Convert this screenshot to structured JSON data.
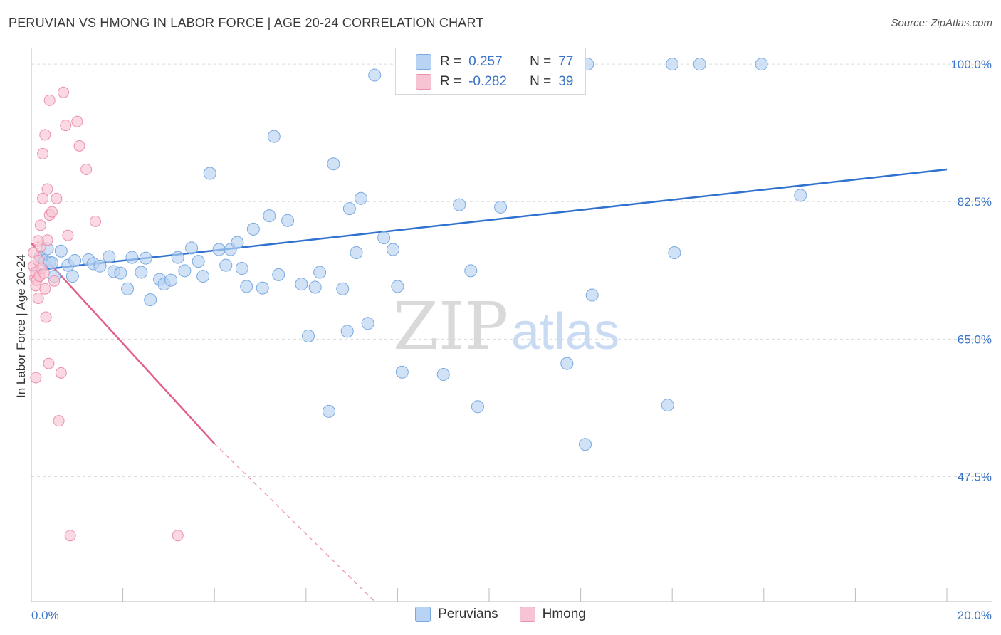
{
  "title": "PERUVIAN VS HMONG IN LABOR FORCE | AGE 20-24 CORRELATION CHART",
  "source": "Source: ZipAtlas.com",
  "watermark": {
    "zip": "ZIP",
    "atlas": "atlas"
  },
  "colors": {
    "peruvians_fill": "#b8d3f3",
    "peruvians_stroke": "#7aa9e0",
    "peruvians_line": "#2f72cf",
    "hmong_fill": "#f7c4d3",
    "hmong_stroke": "#ec8fae",
    "hmong_line": "#e2608a",
    "grid": "#dcdcdc",
    "tick_text": "#3a74c8"
  },
  "legend": {
    "rows": [
      {
        "r_label": "R =",
        "r_value": "0.257",
        "n_label": "N =",
        "n_value": "77"
      },
      {
        "r_label": "R =",
        "r_value": "-0.282",
        "n_label": "N =",
        "n_value": "39"
      }
    ]
  },
  "bottom_legend": {
    "peruvians": "Peruvians",
    "hmong": "Hmong"
  },
  "chart_data": {
    "type": "scatter",
    "title": "PERUVIAN VS HMONG IN LABOR FORCE | AGE 20-24 CORRELATION CHART",
    "xlabel": "",
    "ylabel": "In Labor Force | Age 20-24",
    "xlim": [
      0,
      20
    ],
    "ylim": [
      31.6,
      102
    ],
    "x_ticks": [
      0,
      2,
      4,
      6,
      8,
      10,
      12,
      14,
      16,
      18,
      20
    ],
    "x_tick_labels": {
      "0": "0.0%",
      "20": "20.0%"
    },
    "y_ticks": [
      47.5,
      65.0,
      82.5,
      100.0
    ],
    "y_tick_labels": [
      "47.5%",
      "65.0%",
      "82.5%",
      "100.0%"
    ],
    "grid": true,
    "legend_position": "top-center",
    "series": [
      {
        "name": "Peruvians",
        "r": 0.257,
        "n": 77,
        "trend": {
          "x": [
            0,
            20
          ],
          "y": [
            73.7,
            86.6
          ]
        },
        "points": [
          [
            0.2,
            75.5
          ],
          [
            0.3,
            75.0
          ],
          [
            0.35,
            76.5
          ],
          [
            0.4,
            74.8
          ],
          [
            0.5,
            73.0
          ],
          [
            0.65,
            76.2
          ],
          [
            0.8,
            74.4
          ],
          [
            0.9,
            73.0
          ],
          [
            0.95,
            75.0
          ],
          [
            1.25,
            75.1
          ],
          [
            1.35,
            74.6
          ],
          [
            1.5,
            74.3
          ],
          [
            1.7,
            75.5
          ],
          [
            1.8,
            73.6
          ],
          [
            1.95,
            73.4
          ],
          [
            2.1,
            71.4
          ],
          [
            2.2,
            75.4
          ],
          [
            2.4,
            73.5
          ],
          [
            2.5,
            75.3
          ],
          [
            2.6,
            70.0
          ],
          [
            2.8,
            72.6
          ],
          [
            2.9,
            72.0
          ],
          [
            3.05,
            72.5
          ],
          [
            3.2,
            75.4
          ],
          [
            3.35,
            73.7
          ],
          [
            3.5,
            76.6
          ],
          [
            3.65,
            74.9
          ],
          [
            3.75,
            73.0
          ],
          [
            3.9,
            86.1
          ],
          [
            4.1,
            76.4
          ],
          [
            4.25,
            74.4
          ],
          [
            4.35,
            76.4
          ],
          [
            4.5,
            77.3
          ],
          [
            4.6,
            74.0
          ],
          [
            4.7,
            71.7
          ],
          [
            4.85,
            79.0
          ],
          [
            5.05,
            71.5
          ],
          [
            5.2,
            80.7
          ],
          [
            5.3,
            90.8
          ],
          [
            5.4,
            73.2
          ],
          [
            5.6,
            80.1
          ],
          [
            5.9,
            72.0
          ],
          [
            6.05,
            65.4
          ],
          [
            6.2,
            71.6
          ],
          [
            6.3,
            73.5
          ],
          [
            6.5,
            55.8
          ],
          [
            6.6,
            87.3
          ],
          [
            6.8,
            71.4
          ],
          [
            6.9,
            66.0
          ],
          [
            6.95,
            81.6
          ],
          [
            7.1,
            76.0
          ],
          [
            7.2,
            82.9
          ],
          [
            7.35,
            67.0
          ],
          [
            7.5,
            98.6
          ],
          [
            7.7,
            77.9
          ],
          [
            7.9,
            76.4
          ],
          [
            8.0,
            71.7
          ],
          [
            8.1,
            60.8
          ],
          [
            8.3,
            100.0
          ],
          [
            8.55,
            100.0
          ],
          [
            9.0,
            60.5
          ],
          [
            9.3,
            100.0
          ],
          [
            9.35,
            82.1
          ],
          [
            9.6,
            73.7
          ],
          [
            9.75,
            56.4
          ],
          [
            10.25,
            81.8
          ],
          [
            11.7,
            61.9
          ],
          [
            12.1,
            51.6
          ],
          [
            12.15,
            100.0
          ],
          [
            12.25,
            70.6
          ],
          [
            13.9,
            56.6
          ],
          [
            14.0,
            100.0
          ],
          [
            14.05,
            76.0
          ],
          [
            14.6,
            100.0
          ],
          [
            15.95,
            100.0
          ],
          [
            16.8,
            83.3
          ],
          [
            0.45,
            74.7
          ]
        ]
      },
      {
        "name": "Hmong",
        "r": -0.282,
        "n": 39,
        "trend": {
          "x": [
            0,
            4.0
          ],
          "y": [
            77.2,
            51.7
          ]
        },
        "trend_dashed": {
          "x": [
            4.0,
            7.5
          ],
          "y": [
            51.7,
            31.6
          ]
        },
        "points": [
          [
            0.05,
            76.0
          ],
          [
            0.05,
            74.3
          ],
          [
            0.08,
            72.8
          ],
          [
            0.1,
            73.5
          ],
          [
            0.1,
            71.8
          ],
          [
            0.12,
            72.5
          ],
          [
            0.15,
            75.0
          ],
          [
            0.15,
            70.2
          ],
          [
            0.18,
            73.0
          ],
          [
            0.2,
            79.5
          ],
          [
            0.2,
            76.8
          ],
          [
            0.22,
            74.0
          ],
          [
            0.25,
            82.9
          ],
          [
            0.25,
            88.6
          ],
          [
            0.28,
            73.4
          ],
          [
            0.3,
            71.4
          ],
          [
            0.3,
            91.0
          ],
          [
            0.32,
            67.8
          ],
          [
            0.35,
            84.1
          ],
          [
            0.35,
            77.6
          ],
          [
            0.38,
            61.9
          ],
          [
            0.4,
            80.8
          ],
          [
            0.4,
            95.4
          ],
          [
            0.45,
            81.2
          ],
          [
            0.5,
            72.4
          ],
          [
            0.55,
            82.9
          ],
          [
            0.6,
            54.6
          ],
          [
            0.65,
            60.7
          ],
          [
            0.7,
            96.4
          ],
          [
            0.75,
            92.2
          ],
          [
            0.8,
            78.2
          ],
          [
            0.85,
            40.0
          ],
          [
            1.0,
            92.7
          ],
          [
            1.05,
            89.6
          ],
          [
            1.2,
            86.6
          ],
          [
            1.4,
            80.0
          ],
          [
            0.1,
            60.1
          ],
          [
            3.2,
            40.0
          ],
          [
            0.15,
            77.5
          ]
        ]
      }
    ]
  }
}
